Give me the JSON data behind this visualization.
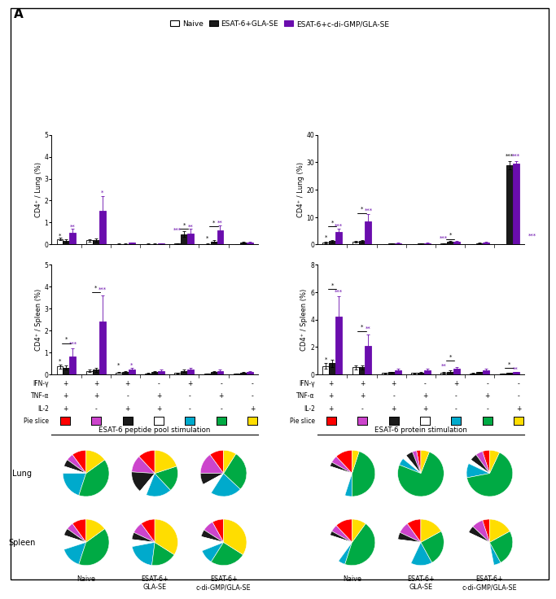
{
  "title_label": "A",
  "legend_labels": [
    "Naive",
    "ESAT-6+GLA-SE",
    "ESAT-6+c-di-GMP/GLA-SE"
  ],
  "legend_colors": [
    "white",
    "#1a1a1a",
    "#6a0dad"
  ],
  "bar_groups": 7,
  "group_labels_ifn": [
    "+",
    "+",
    "+",
    "-",
    "+",
    "-",
    "-"
  ],
  "group_labels_tnf": [
    "+",
    "+",
    "-",
    "+",
    "-",
    "+",
    "-"
  ],
  "group_labels_il2": [
    "+",
    "-",
    "+",
    "+",
    "-",
    "-",
    "+"
  ],
  "pie_colors": [
    "#ff0000",
    "#cc44cc",
    "#1a1a1a",
    "#ffffff",
    "#00aacc",
    "#00aa44",
    "#ffdd00"
  ],
  "top_left_bars": {
    "ylabel": "CD4⁺ / Lung (%)",
    "ylim": [
      0,
      5
    ],
    "yticks": [
      0,
      1,
      2,
      3,
      4,
      5
    ],
    "naive": [
      0.25,
      0.18,
      0.03,
      0.03,
      0.04,
      0.03,
      0.02
    ],
    "black": [
      0.15,
      0.2,
      0.03,
      0.03,
      0.47,
      0.13,
      0.08
    ],
    "purple": [
      0.55,
      1.55,
      0.07,
      0.04,
      0.5,
      0.65,
      0.08
    ],
    "naive_err": [
      0.05,
      0.05,
      0.01,
      0.01,
      0.01,
      0.01,
      0.01
    ],
    "black_err": [
      0.08,
      0.08,
      0.01,
      0.01,
      0.12,
      0.05,
      0.03
    ],
    "purple_err": [
      0.15,
      0.65,
      0.03,
      0.02,
      0.2,
      0.2,
      0.03
    ]
  },
  "top_right_bars": {
    "ylabel": "CD4⁺ / Lung (%)",
    "ylim": [
      0,
      40
    ],
    "yticks": [
      0,
      10,
      20,
      30,
      40
    ],
    "naive": [
      0.8,
      1.0,
      0.2,
      0.2,
      0.3,
      0.2,
      0.1
    ],
    "black": [
      1.2,
      1.2,
      0.3,
      0.3,
      1.0,
      0.5,
      29.0
    ],
    "purple": [
      4.5,
      8.5,
      0.5,
      0.5,
      1.0,
      0.7,
      29.5
    ],
    "naive_err": [
      0.3,
      0.3,
      0.05,
      0.05,
      0.08,
      0.05,
      0.03
    ],
    "black_err": [
      0.4,
      0.4,
      0.08,
      0.08,
      0.3,
      0.15,
      1.5
    ],
    "purple_err": [
      1.2,
      2.5,
      0.15,
      0.15,
      0.3,
      0.2,
      1.0
    ]
  },
  "bot_left_bars": {
    "ylabel": "CD4⁺ / Spleen (%)",
    "ylim": [
      0,
      5
    ],
    "yticks": [
      0,
      1,
      2,
      3,
      4,
      5
    ],
    "naive": [
      0.35,
      0.15,
      0.08,
      0.05,
      0.06,
      0.04,
      0.03
    ],
    "black": [
      0.3,
      0.2,
      0.1,
      0.1,
      0.15,
      0.1,
      0.08
    ],
    "purple": [
      0.8,
      2.4,
      0.2,
      0.15,
      0.2,
      0.15,
      0.1
    ],
    "naive_err": [
      0.1,
      0.05,
      0.02,
      0.02,
      0.02,
      0.01,
      0.01
    ],
    "black_err": [
      0.1,
      0.08,
      0.03,
      0.03,
      0.05,
      0.03,
      0.02
    ],
    "purple_err": [
      0.4,
      1.2,
      0.08,
      0.06,
      0.08,
      0.05,
      0.04
    ]
  },
  "bot_right_bars": {
    "ylabel": "CD4⁺ / Spleen (%)",
    "ylim": [
      0,
      8
    ],
    "yticks": [
      0,
      2,
      4,
      6,
      8
    ],
    "naive": [
      0.6,
      0.5,
      0.1,
      0.1,
      0.12,
      0.08,
      0.05
    ],
    "black": [
      0.8,
      0.5,
      0.15,
      0.12,
      0.2,
      0.15,
      0.1
    ],
    "purple": [
      4.2,
      2.1,
      0.3,
      0.3,
      0.4,
      0.3,
      0.15
    ],
    "naive_err": [
      0.2,
      0.15,
      0.03,
      0.03,
      0.04,
      0.02,
      0.01
    ],
    "black_err": [
      0.25,
      0.15,
      0.04,
      0.04,
      0.06,
      0.04,
      0.02
    ],
    "purple_err": [
      1.5,
      0.8,
      0.1,
      0.1,
      0.12,
      0.1,
      0.04
    ]
  },
  "pie_title_left": "ESAT-6 peptide pool stimulation",
  "pie_title_right": "ESAT-6 protein stimulation",
  "pie_lung_left": [
    [
      10,
      5,
      5,
      5,
      20,
      40,
      15
    ],
    [
      12,
      12,
      15,
      5,
      18,
      18,
      20
    ],
    [
      10,
      15,
      8,
      8,
      22,
      28,
      9
    ]
  ],
  "pie_lung_right": [
    [
      12,
      5,
      3,
      25,
      5,
      45,
      5
    ],
    [
      3,
      3,
      5,
      3,
      5,
      75,
      6
    ],
    [
      5,
      5,
      5,
      3,
      10,
      65,
      7
    ]
  ],
  "pie_spleen_left": [
    [
      10,
      5,
      5,
      10,
      15,
      40,
      15
    ],
    [
      10,
      8,
      5,
      5,
      20,
      18,
      34
    ],
    [
      8,
      8,
      5,
      10,
      10,
      25,
      34
    ]
  ],
  "pie_spleen_right": [
    [
      12,
      5,
      3,
      20,
      5,
      45,
      10
    ],
    [
      10,
      8,
      5,
      20,
      15,
      25,
      17
    ],
    [
      5,
      8,
      5,
      35,
      5,
      25,
      17
    ]
  ],
  "pie_row_labels": [
    "Lung",
    "Spleen"
  ],
  "pie_col_labels": [
    "Naive",
    "ESAT-6+\nGLA-SE",
    "ESAT-6+\nc-di-GMP/GLA-SE"
  ],
  "naive_color": "#ffffff",
  "black_color": "#1a1a1a",
  "purple_color": "#6a0dad",
  "bar_width": 0.22
}
